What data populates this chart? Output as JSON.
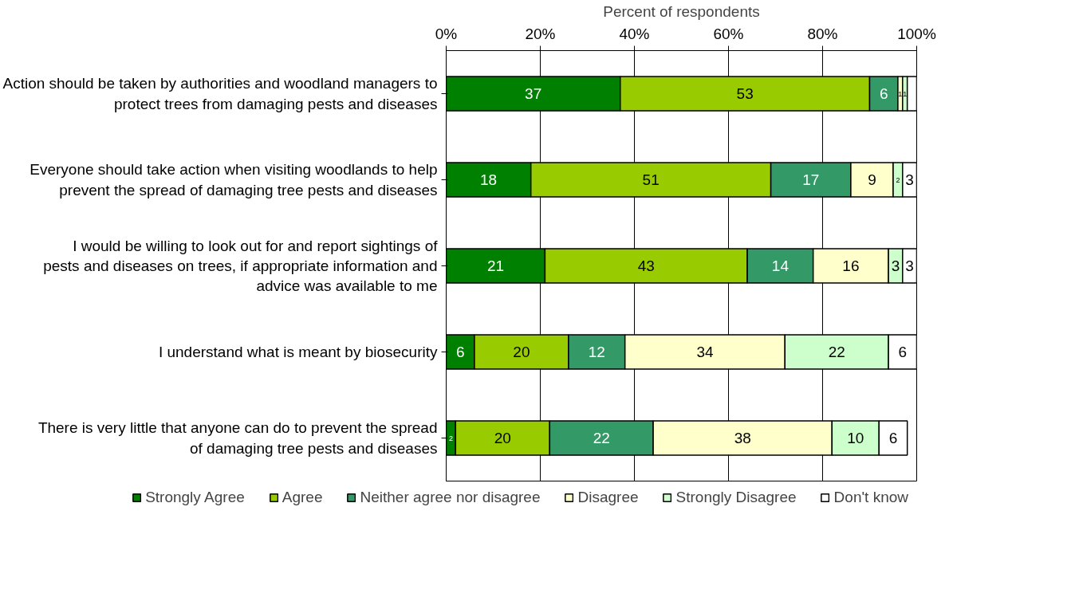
{
  "chart_data": {
    "type": "bar",
    "orientation": "horizontal",
    "stacked": true,
    "xlabel": "Percent of respondents",
    "categories": [
      "Action should be taken by authorities and woodland managers to protect trees from damaging pests and diseases",
      "Everyone should take action when visiting woodlands to help prevent the spread of damaging tree pests and diseases",
      "I would be willing to look out for and report sightings of pests and diseases on trees, if appropriate information and advice was available to me",
      "I understand what is meant by biosecurity",
      "There is very little that anyone can do to prevent the spread of damaging tree pests and diseases"
    ],
    "series": [
      {
        "name": "Strongly Agree",
        "color": "#008000",
        "values": [
          37,
          18,
          21,
          6,
          2
        ],
        "value_labels": [
          "37",
          "18",
          "21",
          "6",
          "2"
        ]
      },
      {
        "name": "Agree",
        "color": "#99cc00",
        "values": [
          53,
          51,
          43,
          20,
          20
        ],
        "value_labels": [
          "53",
          "51",
          "43",
          "20",
          "20"
        ]
      },
      {
        "name": "Neither agree nor disagree",
        "color": "#339966",
        "values": [
          6,
          17,
          14,
          12,
          22
        ],
        "value_labels": [
          "6",
          "17",
          "14",
          "12",
          "22"
        ]
      },
      {
        "name": "Disagree",
        "color": "#ffffcc",
        "values": [
          1,
          9,
          16,
          34,
          38
        ],
        "value_labels": [
          "1",
          "9",
          "16",
          "34",
          "38"
        ]
      },
      {
        "name": "Strongly Disagree",
        "color": "#ccffcc",
        "values": [
          1,
          2,
          3,
          22,
          10
        ],
        "value_labels": [
          "1",
          "2",
          "3",
          "22",
          "10"
        ]
      },
      {
        "name": "Don't know",
        "color": "#ffffff",
        "values": [
          2,
          3,
          3,
          6,
          6
        ],
        "value_labels": [
          null,
          "3",
          "3",
          "6",
          "6"
        ]
      }
    ],
    "xlim": [
      0,
      100
    ],
    "xticks": [
      {
        "value": 0,
        "label": "0%"
      },
      {
        "value": 20,
        "label": "20%"
      },
      {
        "value": 40,
        "label": "40%"
      },
      {
        "value": 60,
        "label": "60%"
      },
      {
        "value": 80,
        "label": "80%"
      },
      {
        "value": 100,
        "label": "100%"
      }
    ],
    "grid": "x",
    "legend": "bottom"
  }
}
